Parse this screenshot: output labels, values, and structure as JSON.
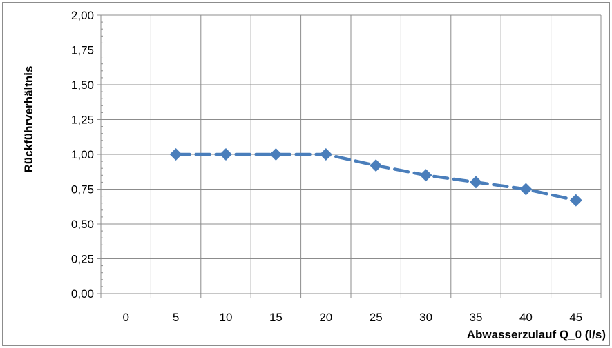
{
  "chart_data": {
    "type": "line",
    "title": "",
    "xlabel": "Abwasserzulauf Q_0 (l/s)",
    "ylabel": "Rückführverhältnis",
    "x_categories": [
      "0",
      "5",
      "10",
      "15",
      "20",
      "25",
      "30",
      "35",
      "40",
      "45"
    ],
    "ylim": [
      0,
      2
    ],
    "y_ticks": [
      "0,00",
      "0,25",
      "0,50",
      "0,75",
      "1,00",
      "1,25",
      "1,50",
      "1,75",
      "2,00"
    ],
    "grid": true,
    "legend": "none",
    "series": [
      {
        "x": [
          5,
          10,
          15,
          20,
          25,
          30,
          35,
          40,
          45
        ],
        "y": [
          1.0,
          1.0,
          1.0,
          1.0,
          0.92,
          0.85,
          0.8,
          0.75,
          0.67
        ],
        "line_style": "dashed",
        "marker": "diamond",
        "color": "#4a7ebb"
      }
    ]
  }
}
